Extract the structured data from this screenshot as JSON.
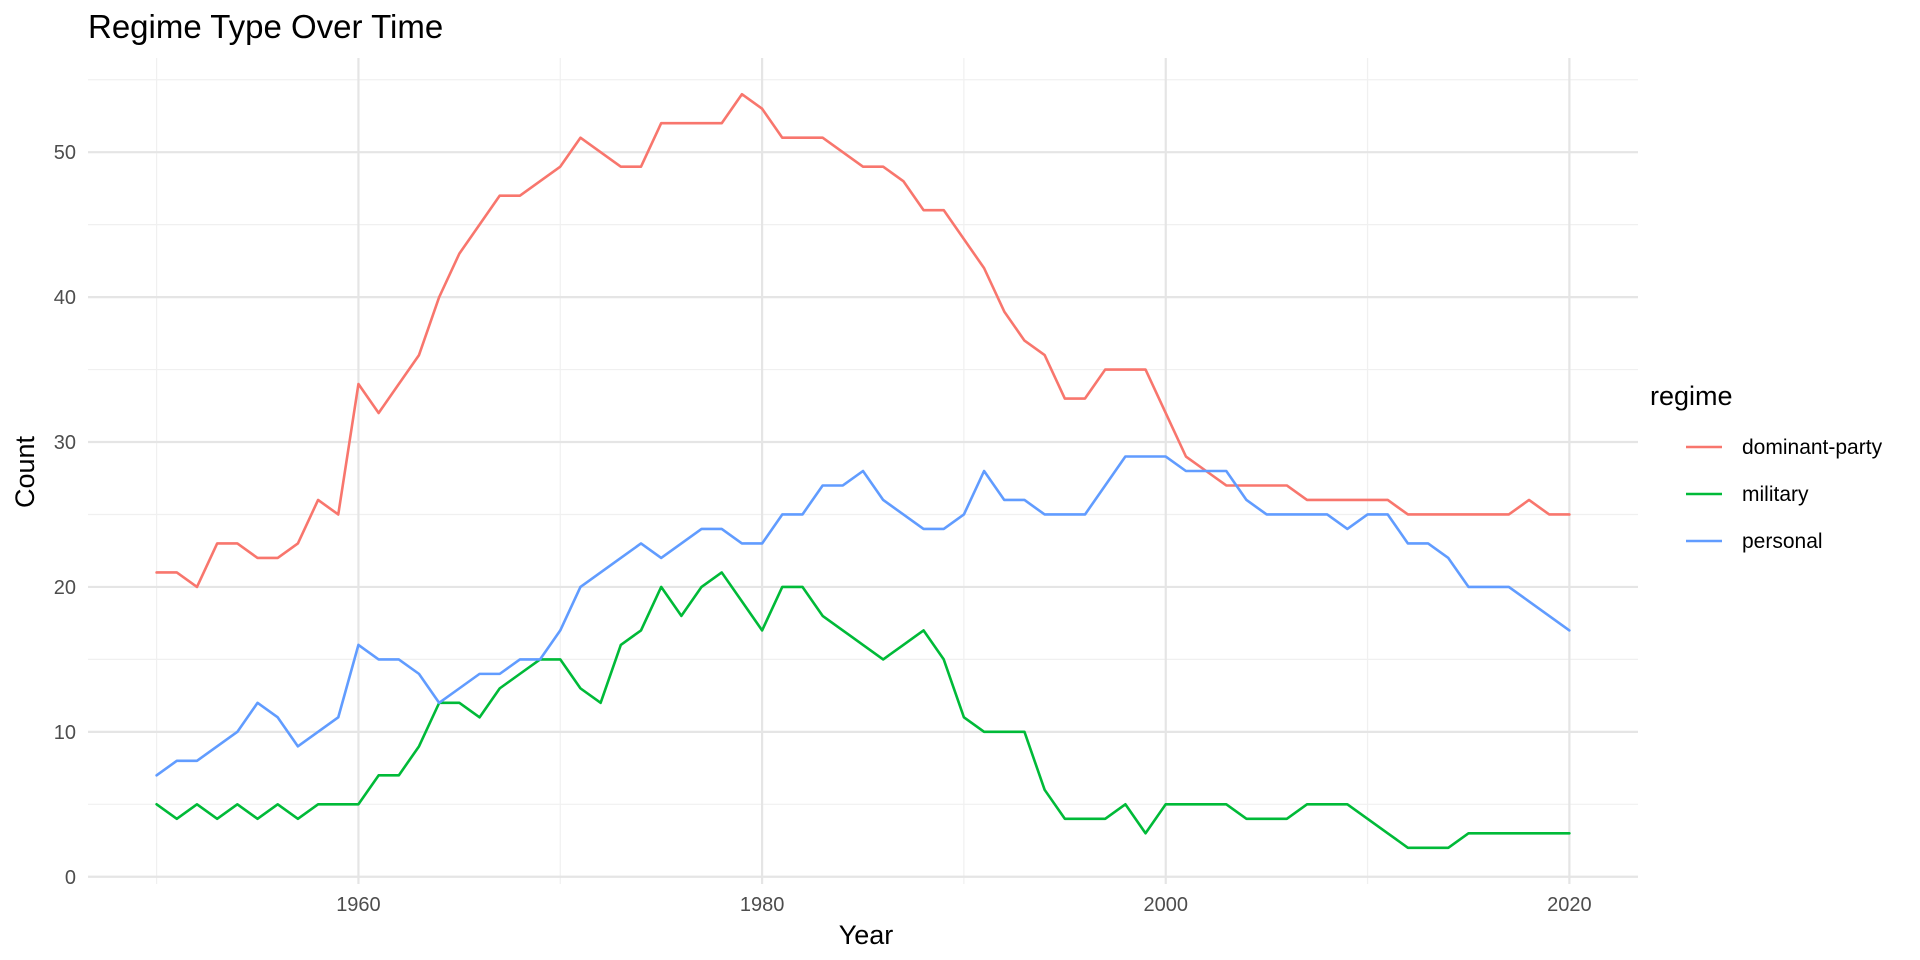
{
  "chart_data": {
    "type": "line",
    "title": "Regime Type Over Time",
    "xlabel": "Year",
    "ylabel": "Count",
    "xlim": [
      1946.6,
      2023.4
    ],
    "ylim": [
      -0.5,
      56.5
    ],
    "x_ticks": [
      1960,
      1980,
      2000,
      2020
    ],
    "y_ticks": [
      0,
      10,
      20,
      30,
      40,
      50
    ],
    "grid": true,
    "legend": {
      "title": "regime",
      "position": "right"
    },
    "x": [
      1950,
      1951,
      1952,
      1953,
      1954,
      1955,
      1956,
      1957,
      1958,
      1959,
      1960,
      1961,
      1962,
      1963,
      1964,
      1965,
      1966,
      1967,
      1968,
      1969,
      1970,
      1971,
      1972,
      1973,
      1974,
      1975,
      1976,
      1977,
      1978,
      1979,
      1980,
      1981,
      1982,
      1983,
      1984,
      1985,
      1986,
      1987,
      1988,
      1989,
      1990,
      1991,
      1992,
      1993,
      1994,
      1995,
      1996,
      1997,
      1998,
      1999,
      2000,
      2001,
      2002,
      2003,
      2004,
      2005,
      2006,
      2007,
      2008,
      2009,
      2010,
      2011,
      2012,
      2013,
      2014,
      2015,
      2016,
      2017,
      2018,
      2019,
      2020
    ],
    "series": [
      {
        "name": "dominant-party",
        "color": "#F8766D",
        "values": [
          21,
          21,
          20,
          23,
          23,
          22,
          22,
          23,
          26,
          25,
          34,
          32,
          34,
          36,
          40,
          43,
          45,
          47,
          47,
          48,
          49,
          51,
          50,
          49,
          49,
          52,
          52,
          52,
          52,
          54,
          53,
          51,
          51,
          51,
          50,
          49,
          49,
          48,
          46,
          46,
          44,
          42,
          39,
          37,
          36,
          33,
          33,
          35,
          35,
          35,
          32,
          29,
          28,
          27,
          27,
          27,
          27,
          26,
          26,
          26,
          26,
          26,
          25,
          25,
          25,
          25,
          25,
          25,
          26,
          25,
          25
        ]
      },
      {
        "name": "military",
        "color": "#00BA38",
        "values": [
          5,
          4,
          5,
          4,
          5,
          4,
          5,
          4,
          5,
          5,
          5,
          7,
          7,
          9,
          12,
          12,
          11,
          13,
          14,
          15,
          15,
          13,
          12,
          16,
          17,
          20,
          18,
          20,
          21,
          19,
          17,
          20,
          20,
          18,
          17,
          16,
          15,
          16,
          17,
          15,
          11,
          10,
          10,
          10,
          6,
          4,
          4,
          4,
          5,
          3,
          5,
          5,
          5,
          5,
          4,
          4,
          4,
          5,
          5,
          5,
          4,
          3,
          2,
          2,
          2,
          3,
          3,
          3,
          3,
          3,
          3
        ]
      },
      {
        "name": "personal",
        "color": "#619CFF",
        "values": [
          7,
          8,
          8,
          9,
          10,
          12,
          11,
          9,
          10,
          11,
          16,
          15,
          15,
          14,
          12,
          13,
          14,
          14,
          15,
          15,
          17,
          20,
          21,
          22,
          23,
          22,
          23,
          24,
          24,
          23,
          23,
          25,
          25,
          27,
          27,
          28,
          26,
          25,
          24,
          24,
          25,
          28,
          26,
          26,
          25,
          25,
          25,
          27,
          29,
          29,
          29,
          28,
          28,
          28,
          26,
          25,
          25,
          25,
          25,
          24,
          25,
          25,
          23,
          23,
          22,
          20,
          20,
          20,
          19,
          18,
          17
        ]
      }
    ]
  }
}
